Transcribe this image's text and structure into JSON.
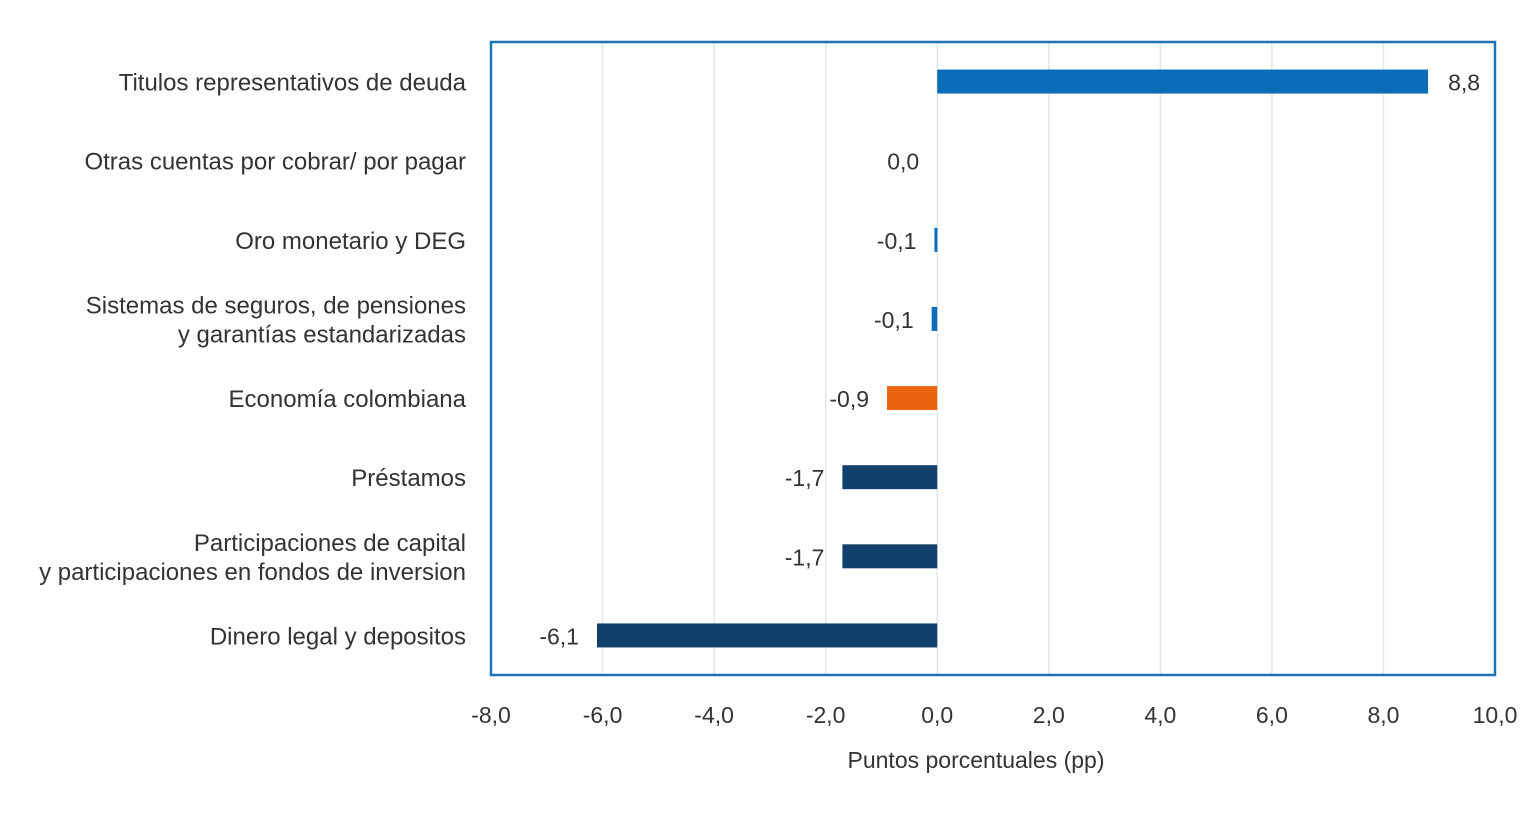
{
  "chart_data": {
    "type": "bar",
    "orientation": "horizontal",
    "title": "",
    "xlabel": "Puntos porcentuales (pp)",
    "ylabel": "",
    "xlim": [
      -8,
      10
    ],
    "x_ticks": [
      -8,
      -6,
      -4,
      -2,
      0,
      2,
      4,
      6,
      8,
      10
    ],
    "x_tick_labels": [
      "-8,0",
      "-6,0",
      "-4,0",
      "-2,0",
      "0,0",
      "2,0",
      "4,0",
      "6,0",
      "8,0",
      "10,0"
    ],
    "grid": "vertical",
    "categories": [
      [
        "Titulos representativos de deuda"
      ],
      [
        "Otras cuentas por cobrar/ por pagar"
      ],
      [
        "Oro monetario y DEG"
      ],
      [
        "Sistemas de seguros, de pensiones",
        "y garantías estandarizadas"
      ],
      [
        "Economía colombiana"
      ],
      [
        "Préstamos"
      ],
      [
        "Participaciones de capital",
        "y participaciones en fondos de inversion"
      ],
      [
        "Dinero legal y depositos"
      ]
    ],
    "values": [
      8.8,
      0.0,
      -0.05,
      -0.1,
      -0.9,
      -1.7,
      -1.7,
      -6.1
    ],
    "value_labels": [
      "8,8",
      "0,0",
      "-0,1",
      "-0,1",
      "-0,9",
      "-1,7",
      "-1,7",
      "-6,1"
    ],
    "colors": [
      "#0B6DB7",
      "#0B6DB7",
      "#0B6DB7",
      "#0B6DB7",
      "#EA650D",
      "#12406D",
      "#12406D",
      "#12406D"
    ],
    "frame_color": "#1D74B5",
    "grid_color": "#E3E6EA"
  }
}
